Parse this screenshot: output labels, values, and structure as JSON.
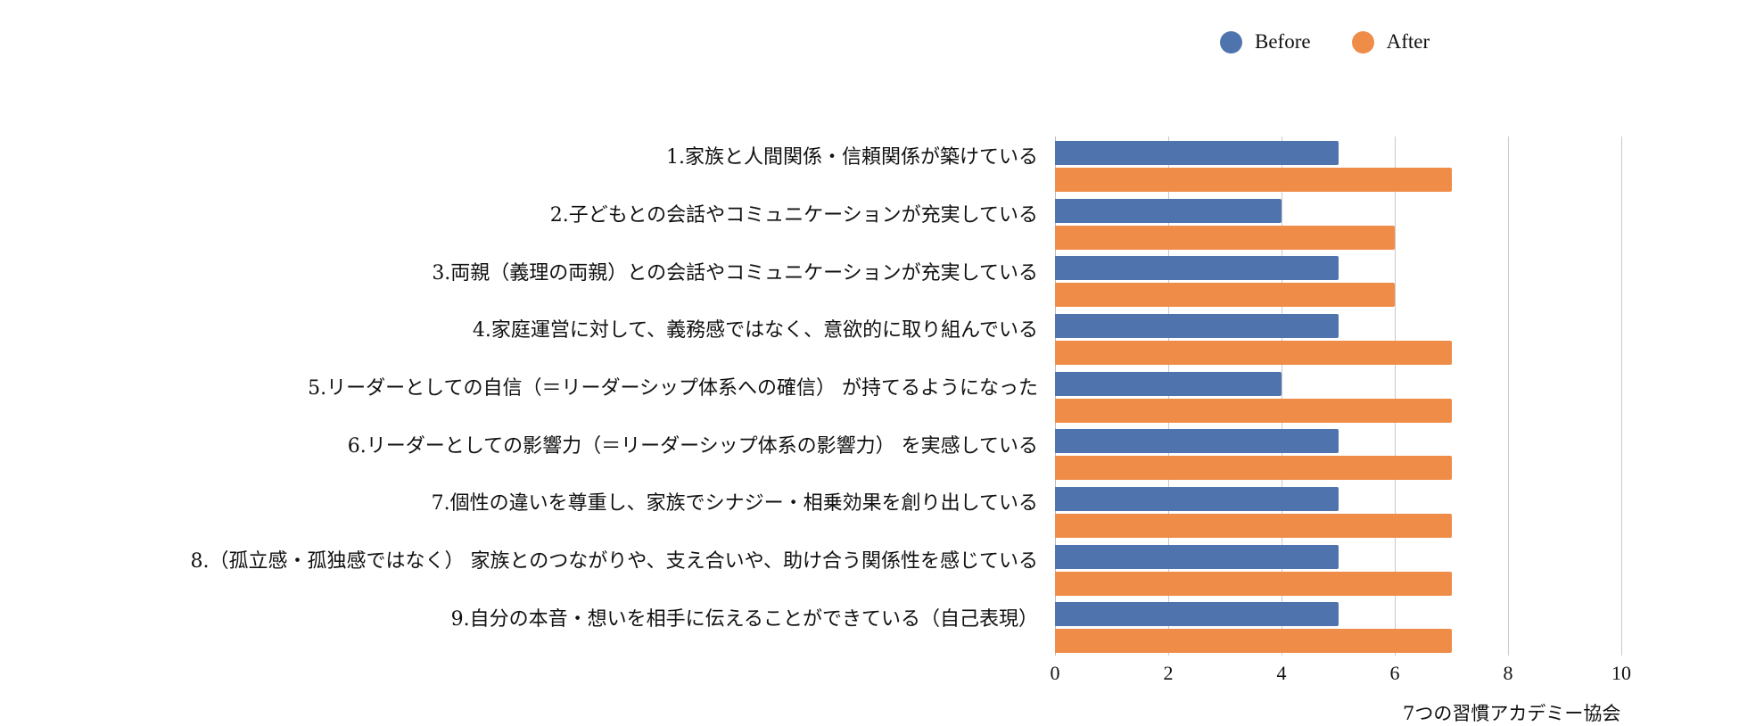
{
  "chart_data": {
    "type": "bar",
    "orientation": "horizontal",
    "title": "",
    "xlabel": "",
    "ylabel": "",
    "xlim": [
      0,
      10
    ],
    "x_ticks": [
      "0",
      "2",
      "4",
      "6",
      "8",
      "10"
    ],
    "grid": true,
    "legend_position": "top-right",
    "categories": [
      "1.家族と人間関係・信頼関係が築けている",
      "2.子どもとの会話やコミュニケーションが充実している",
      "3.両親（義理の両親）との会話やコミュニケーションが充実している",
      "4.家庭運営に対して、義務感ではなく、意欲的に取り組んでいる",
      "5.リーダーとしての自信（＝リーダーシップ体系への確信） が持てるようになった",
      "6.リーダーとしての影響力（＝リーダーシップ体系の影響力） を実感している",
      "7.個性の違いを尊重し、家族でシナジー・相乗効果を創り出している",
      "8.（孤立感・孤独感ではなく） 家族とのつながりや、支え合いや、助け合う関係性を感じている",
      "9.自分の本音・想いを相手に伝えることができている（自己表現）"
    ],
    "series": [
      {
        "name": "Before",
        "color": "#4e73ad",
        "values": [
          5,
          4,
          5,
          5,
          4,
          5,
          5,
          5,
          5
        ]
      },
      {
        "name": "After",
        "color": "#ee8c48",
        "values": [
          7,
          6,
          6,
          7,
          7,
          7,
          7,
          7,
          7
        ]
      }
    ],
    "source": "7つの習慣アカデミー協会"
  },
  "legend": {
    "items": [
      {
        "label": "Before",
        "color": "#4e73ad"
      },
      {
        "label": "After",
        "color": "#ee8c48"
      }
    ]
  },
  "footer": {
    "source": "7つの習慣アカデミー協会"
  }
}
